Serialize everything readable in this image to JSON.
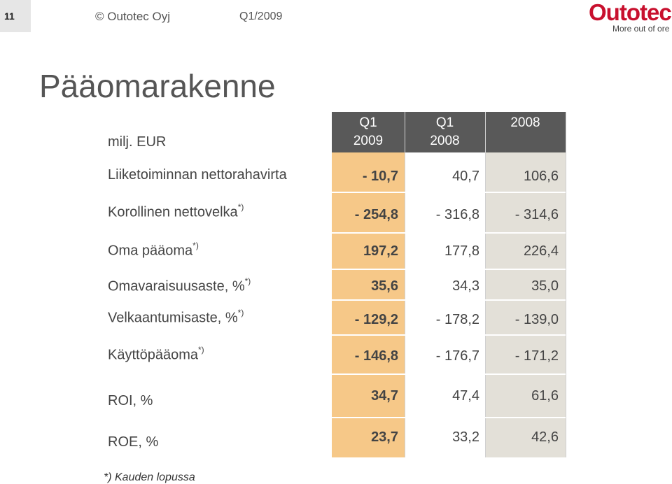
{
  "header": {
    "page_number": "11",
    "copyright": "© Outotec Oyj",
    "quarter": "Q1/2009",
    "logo_name": "Outotec",
    "logo_tagline": "More out of ore"
  },
  "title": "Pääomarakenne",
  "table": {
    "units_label": "milj. EUR",
    "columns": [
      {
        "line1": "Q1",
        "line2": "2009"
      },
      {
        "line1": "Q1",
        "line2": "2008"
      },
      {
        "line1": "",
        "line2": "2008"
      }
    ],
    "rows": [
      {
        "label": "Liiketoiminnan nettorahavirta",
        "mark": "",
        "v1": "- 10,7",
        "v2": "40,7",
        "v3": "106,6"
      },
      {
        "label": "Korollinen nettovelka",
        "mark": "*)",
        "v1": "- 254,8",
        "v2": "- 316,8",
        "v3": "- 314,6"
      },
      {
        "label": "Oma pääoma",
        "mark": "*)",
        "v1": "197,2",
        "v2": "177,8",
        "v3": "226,4"
      },
      {
        "label": "Omavaraisuusaste, %",
        "mark": "*)",
        "v1": "35,6",
        "v2": "34,3",
        "v3": "35,0"
      },
      {
        "label": "Velkaantumisaste, %",
        "mark": "*)",
        "v1": "- 129,2",
        "v2": "- 178,2",
        "v3": "- 139,0"
      },
      {
        "label": "Käyttöpääoma",
        "mark": "*)",
        "v1": "- 146,8",
        "v2": "- 176,7",
        "v3": "- 171,2"
      },
      {
        "label": "ROI, %",
        "mark": "",
        "v1": "34,7",
        "v2": "47,4",
        "v3": "61,6"
      },
      {
        "label": "ROE, %",
        "mark": "",
        "v1": "23,7",
        "v2": "33,2",
        "v3": "42,6"
      }
    ]
  },
  "footnote": "*) Kauden lopussa",
  "colors": {
    "highlight_column": "#f6c888",
    "header_band": "#595959",
    "last_column": "#e3e0d8",
    "logo_red": "#c8102e"
  }
}
